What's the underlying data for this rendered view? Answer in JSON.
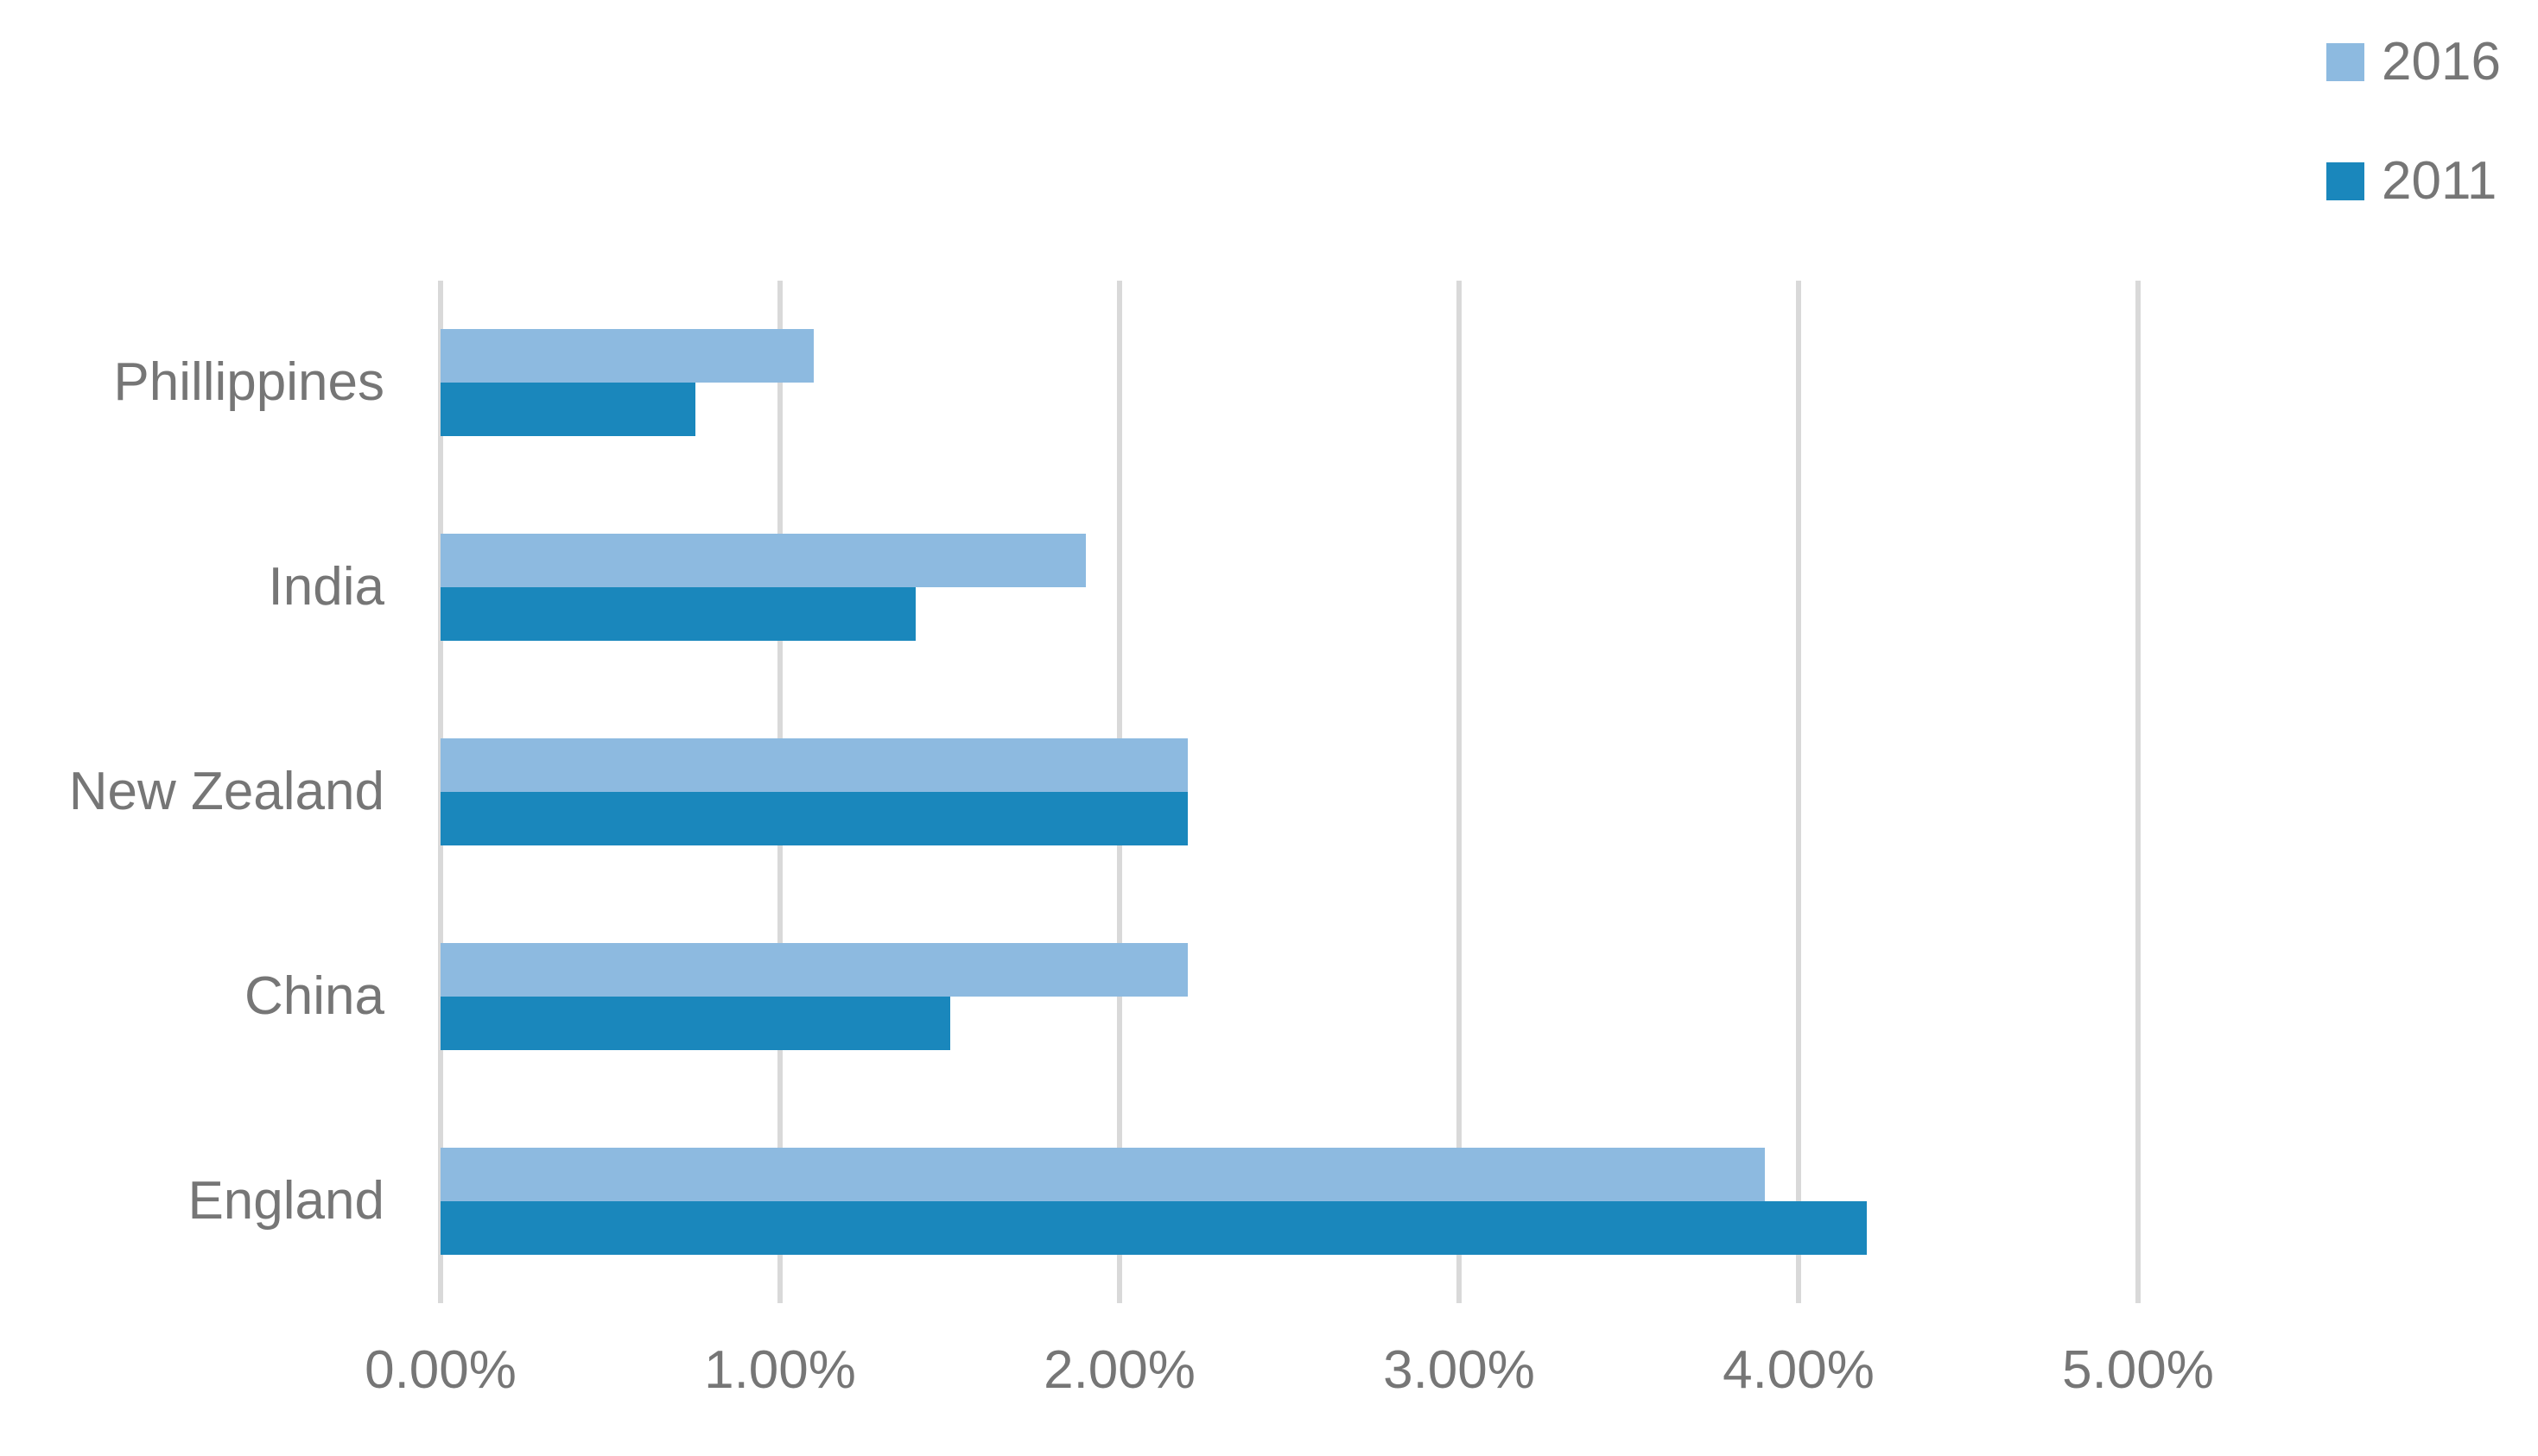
{
  "chart_data": {
    "type": "bar",
    "orientation": "horizontal",
    "title": "",
    "categories": [
      "Phillippines",
      "India",
      "New Zealand",
      "China",
      "England"
    ],
    "series": [
      {
        "name": "2016",
        "color": "#8DBAE0",
        "values": [
          1.1,
          1.9,
          2.2,
          2.2,
          3.9
        ]
      },
      {
        "name": "2011",
        "color": "#1A87BC",
        "values": [
          0.75,
          1.4,
          2.2,
          1.5,
          4.2
        ]
      }
    ],
    "x_axis": {
      "min": 0,
      "max": 5,
      "unit": "%",
      "tick_labels": [
        "0.00%",
        "1.00%",
        "2.00%",
        "3.00%",
        "4.00%",
        "5.00%"
      ]
    },
    "legend": {
      "position": "top-right",
      "entries": [
        "2016",
        "2011"
      ]
    },
    "grid": true,
    "colors": {
      "gridline": "#D9D9D9",
      "axis_text": "#767676",
      "background": "#FFFFFF"
    }
  }
}
